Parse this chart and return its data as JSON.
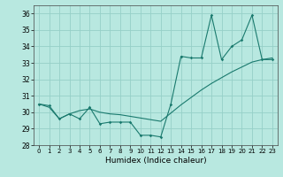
{
  "xlabel": "Humidex (Indice chaleur)",
  "xlim": [
    -0.5,
    23.5
  ],
  "ylim": [
    28,
    36.5
  ],
  "yticks": [
    28,
    29,
    30,
    31,
    32,
    33,
    34,
    35,
    36
  ],
  "xticks": [
    0,
    1,
    2,
    3,
    4,
    5,
    6,
    7,
    8,
    9,
    10,
    11,
    12,
    13,
    14,
    15,
    16,
    17,
    18,
    19,
    20,
    21,
    22,
    23
  ],
  "line_color": "#1a7a6e",
  "bg_color": "#b8e8e0",
  "grid_color": "#96d0c8",
  "data_x": [
    0,
    1,
    2,
    3,
    4,
    5,
    6,
    7,
    8,
    9,
    10,
    11,
    12,
    13,
    14,
    15,
    16,
    17,
    18,
    19,
    20,
    21,
    22,
    23
  ],
  "data_y1": [
    30.5,
    30.4,
    29.6,
    29.9,
    29.6,
    30.3,
    29.3,
    29.4,
    29.4,
    29.4,
    28.6,
    28.6,
    28.5,
    30.5,
    33.4,
    33.3,
    33.3,
    35.9,
    33.2,
    34.0,
    34.4,
    35.9,
    33.2,
    33.2
  ],
  "data_y2": [
    30.5,
    30.3,
    29.6,
    29.9,
    30.1,
    30.2,
    30.0,
    29.9,
    29.85,
    29.75,
    29.65,
    29.55,
    29.45,
    29.95,
    30.45,
    30.9,
    31.35,
    31.75,
    32.1,
    32.45,
    32.75,
    33.05,
    33.2,
    33.3
  ]
}
